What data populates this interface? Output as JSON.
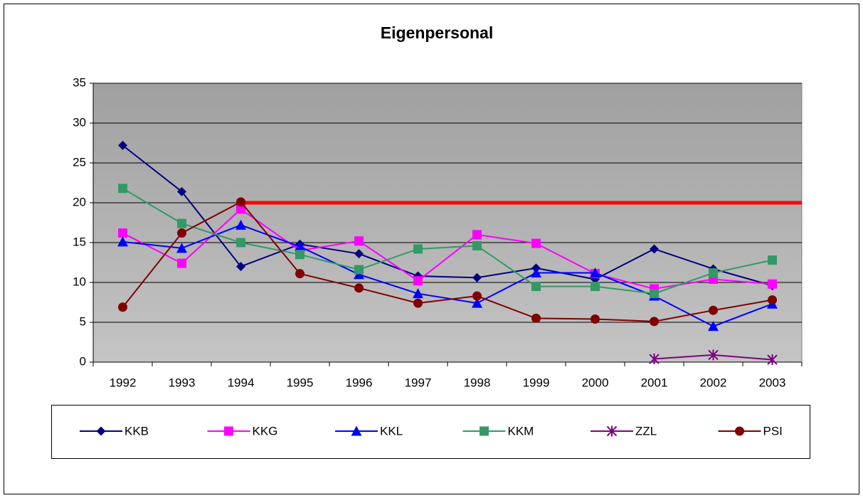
{
  "chart_data": {
    "type": "line",
    "title": "Eigenpersonal",
    "categories": [
      "1992",
      "1993",
      "1994",
      "1995",
      "1996",
      "1997",
      "1998",
      "1999",
      "2000",
      "2001",
      "2002",
      "2003"
    ],
    "series": [
      {
        "name": "KKB",
        "color": "#000080",
        "marker": "diamond",
        "values": [
          27.2,
          21.4,
          12.0,
          14.8,
          13.6,
          10.8,
          10.6,
          11.8,
          10.4,
          14.2,
          11.7,
          9.6
        ]
      },
      {
        "name": "KKG",
        "color": "#ff00ff",
        "marker": "square",
        "values": [
          16.2,
          12.4,
          19.2,
          14.0,
          15.2,
          10.2,
          16.0,
          14.9,
          11.1,
          9.2,
          10.4,
          9.8
        ]
      },
      {
        "name": "KKL",
        "color": "#0000ff",
        "marker": "triangle",
        "values": [
          15.1,
          14.3,
          17.2,
          14.5,
          11.0,
          8.6,
          7.4,
          11.2,
          11.2,
          8.3,
          4.5,
          7.3
        ]
      },
      {
        "name": "KKM",
        "color": "#339966",
        "marker": "square",
        "values": [
          21.8,
          17.4,
          15.0,
          13.5,
          11.6,
          14.2,
          14.6,
          9.5,
          9.5,
          8.6,
          11.2,
          12.8
        ]
      },
      {
        "name": "ZZL",
        "color": "#800080",
        "marker": "asterisk",
        "values": [
          null,
          null,
          null,
          null,
          null,
          null,
          null,
          null,
          null,
          0.4,
          0.9,
          0.3
        ]
      },
      {
        "name": "PSI",
        "color": "#800000",
        "marker": "circle",
        "values": [
          6.9,
          16.2,
          20.1,
          11.1,
          9.3,
          7.4,
          8.3,
          5.5,
          5.4,
          5.1,
          6.5,
          7.8
        ]
      }
    ],
    "threshold": {
      "value": 20,
      "color": "#ff0000",
      "start": "1994"
    },
    "ylim": [
      0,
      35
    ],
    "yticks": [
      0,
      5,
      10,
      15,
      20,
      25,
      30,
      35
    ],
    "grid": true,
    "legend": "bottom"
  }
}
